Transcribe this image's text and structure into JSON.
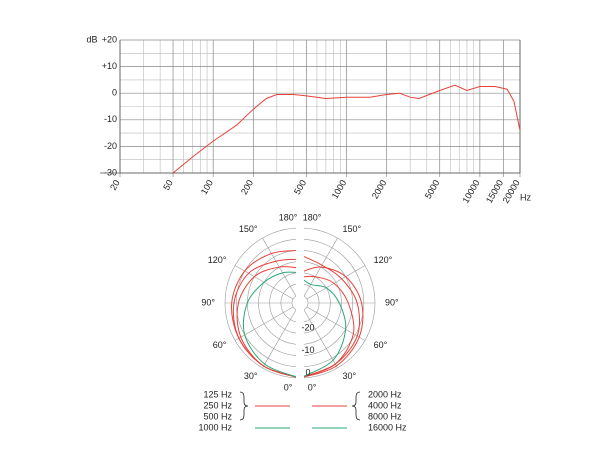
{
  "chart_data": [
    {
      "type": "line",
      "xscale": "log",
      "ylabel": "dB",
      "xlabel": "Hz",
      "x": [
        50,
        70,
        100,
        150,
        200,
        250,
        300,
        400,
        500,
        700,
        1000,
        1500,
        2000,
        2500,
        3000,
        3500,
        5000,
        6500,
        8000,
        10000,
        13000,
        16000,
        18000,
        20000
      ],
      "values": [
        -30,
        -24,
        -18,
        -12,
        -6,
        -2,
        -0.5,
        -0.5,
        -1,
        -2,
        -1.5,
        -1.5,
        -0.5,
        0,
        -1.5,
        -2,
        1,
        3,
        1,
        2.5,
        2.5,
        1.5,
        -3,
        -14
      ],
      "color": "#e8413a",
      "xlim": [
        20,
        20000
      ],
      "ylim": [
        -30,
        20
      ],
      "xticks": [
        20,
        50,
        100,
        200,
        500,
        1000,
        2000,
        5000,
        10000,
        15000,
        20000
      ],
      "xminorticks": [
        30,
        40,
        60,
        70,
        80,
        90,
        300,
        400,
        600,
        700,
        800,
        900,
        3000,
        4000,
        6000,
        7000,
        8000,
        9000
      ],
      "yticks": [
        {
          "value": 20,
          "label": "+20"
        },
        {
          "value": 10,
          "label": "+10"
        },
        0,
        -10,
        -20,
        -30
      ],
      "yminorticks": [
        15,
        5,
        -5,
        -15,
        -25
      ],
      "grid": true
    },
    {
      "type": "polar",
      "theta": [
        0,
        30,
        60,
        90,
        120,
        150,
        180
      ],
      "thetaticks": [
        {
          "value": 0,
          "label": "0°"
        },
        {
          "value": 30,
          "label": "30°"
        },
        {
          "value": 60,
          "label": "60°"
        },
        {
          "value": 90,
          "label": "90°"
        },
        {
          "value": 120,
          "label": "120°"
        },
        {
          "value": 150,
          "label": "150°"
        },
        {
          "value": 180,
          "label": "180°"
        }
      ],
      "rlim": [
        -30,
        0
      ],
      "rticks": [
        0,
        -10,
        -20
      ],
      "rminorticks": [
        -5,
        -15,
        -25
      ],
      "series": [
        {
          "name": "125 Hz",
          "side": "left",
          "color": "#e8413a",
          "values": [
            0,
            -1,
            -2,
            -3,
            -5,
            -8,
            -10
          ]
        },
        {
          "name": "250 Hz",
          "side": "left",
          "color": "#e8413a",
          "values": [
            0,
            -1,
            -2,
            -4,
            -7,
            -12,
            -14
          ]
        },
        {
          "name": "500 Hz",
          "side": "left",
          "color": "#e8413a",
          "values": [
            0,
            -1,
            -3,
            -6,
            -10,
            -15,
            -18
          ]
        },
        {
          "name": "1000 Hz",
          "side": "left",
          "color": "#2aa876",
          "values": [
            0,
            -2,
            -5,
            -10,
            -15,
            -18,
            -20
          ]
        },
        {
          "name": "2000 Hz",
          "side": "right",
          "color": "#e8413a",
          "values": [
            0,
            -2,
            -4,
            -8,
            -12,
            -14,
            -12
          ]
        },
        {
          "name": "4000 Hz",
          "side": "right",
          "color": "#e8413a",
          "values": [
            0,
            -1,
            -3,
            -6,
            -10,
            -15,
            -20
          ]
        },
        {
          "name": "8000 Hz",
          "side": "right",
          "color": "#e8413a",
          "values": [
            0,
            -2,
            -6,
            -12,
            -16,
            -20,
            -22
          ]
        },
        {
          "name": "16000 Hz",
          "side": "right",
          "color": "#2aa876",
          "values": [
            0,
            -4,
            -10,
            -16,
            -20,
            -24,
            -22
          ]
        }
      ]
    }
  ]
}
